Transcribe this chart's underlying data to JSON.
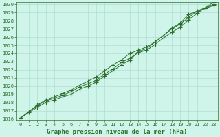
{
  "xlabel": "Graphe pression niveau de la mer (hPa)",
  "xlim": [
    0,
    23
  ],
  "ylim": [
    1016,
    1030
  ],
  "xticks": [
    0,
    1,
    2,
    3,
    4,
    5,
    6,
    7,
    8,
    9,
    10,
    11,
    12,
    13,
    14,
    15,
    16,
    17,
    18,
    19,
    20,
    21,
    22,
    23
  ],
  "yticks": [
    1016,
    1017,
    1018,
    1019,
    1020,
    1021,
    1022,
    1023,
    1024,
    1025,
    1026,
    1027,
    1028,
    1029,
    1030
  ],
  "background_color": "#cff5ea",
  "grid_color": "#b0ddd0",
  "line_color": "#2d6e2d",
  "line1_x": [
    0,
    1,
    2,
    3,
    4,
    5,
    6,
    7,
    8,
    9,
    10,
    11,
    12,
    13,
    14,
    15,
    16,
    17,
    18,
    19,
    20,
    21,
    22,
    23
  ],
  "line1_y": [
    1016.1,
    1016.9,
    1017.6,
    1018.2,
    1018.5,
    1018.9,
    1019.3,
    1019.9,
    1020.3,
    1020.7,
    1021.5,
    1022.1,
    1022.9,
    1023.4,
    1024.1,
    1024.4,
    1025.1,
    1025.9,
    1026.6,
    1027.2,
    1028.1,
    1028.9,
    1029.6,
    1030.3
  ],
  "line2_x": [
    0,
    2,
    3,
    4,
    5,
    6,
    7,
    8,
    9,
    10,
    11,
    12,
    13,
    14,
    15,
    16,
    17,
    18,
    19,
    20,
    21,
    22,
    23
  ],
  "line2_y": [
    1016.1,
    1017.7,
    1018.3,
    1018.7,
    1019.1,
    1019.5,
    1020.1,
    1020.6,
    1021.1,
    1021.9,
    1022.6,
    1023.2,
    1024.0,
    1024.4,
    1024.8,
    1025.4,
    1026.2,
    1027.1,
    1027.7,
    1028.8,
    1029.1,
    1029.5,
    1029.9
  ],
  "line3_x": [
    0,
    1,
    2,
    3,
    4,
    5,
    6,
    7,
    8,
    9,
    10,
    11,
    12,
    13,
    14,
    15,
    16,
    17,
    18,
    19,
    20,
    21,
    22,
    23
  ],
  "line3_y": [
    1016.1,
    1016.8,
    1017.4,
    1018.0,
    1018.3,
    1018.7,
    1019.0,
    1019.6,
    1020.0,
    1020.5,
    1021.2,
    1021.9,
    1022.6,
    1023.2,
    1024.2,
    1024.6,
    1025.4,
    1026.2,
    1027.0,
    1027.6,
    1028.4,
    1029.2,
    1029.6,
    1030.0
  ],
  "font_color": "#2d6e2d",
  "tick_fontsize": 5.0,
  "label_fontsize": 6.5,
  "marker": "+",
  "markersize": 4.0,
  "linewidth": 0.7
}
